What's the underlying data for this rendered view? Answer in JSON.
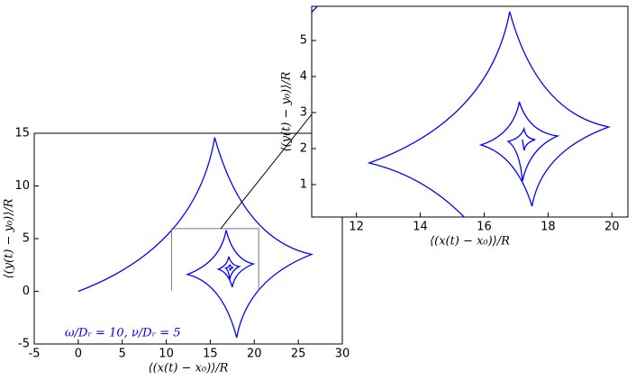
{
  "chart_data": [
    {
      "type": "line",
      "xlabel": "⟨(x(t) − x₀)⟩/R",
      "ylabel": "⟨(y(t) − y₀)⟩/R",
      "annotation": "ω/Dᵣ = 10,  ν/Dᵣ = 5",
      "xlim": [
        -5,
        30
      ],
      "xticks": [
        -5,
        0,
        5,
        10,
        15,
        20,
        25,
        30
      ],
      "ylim": [
        -5,
        15
      ],
      "yticks": [
        -5,
        0,
        5,
        10,
        15
      ],
      "series": [
        {
          "color": "#0000ff",
          "x": [
            0,
            15.5,
            26.5,
            18,
            12.4,
            16.8,
            19.9,
            17.5,
            15.9,
            17.1,
            18.3,
            17.2,
            16.75,
            17.25,
            17.6,
            17.25,
            17.2
          ],
          "values": [
            0,
            14.6,
            3.5,
            -4.4,
            1.6,
            5.8,
            2.6,
            0.4,
            2.1,
            3.3,
            2.35,
            1.1,
            2.2,
            2.55,
            2.25,
            1.95,
            2.25
          ]
        }
      ]
    },
    {
      "type": "inset",
      "xlabel": "⟨(x(t) − x₀)⟩/R",
      "ylabel": "⟨(y(t) − y₀)⟩/R",
      "xlim": [
        10.6,
        20.5
      ],
      "xticks": [
        12,
        14,
        16,
        18,
        20
      ],
      "ylim": [
        0.1,
        5.95
      ],
      "yticks": [
        1,
        2,
        3,
        4,
        5
      ]
    }
  ]
}
